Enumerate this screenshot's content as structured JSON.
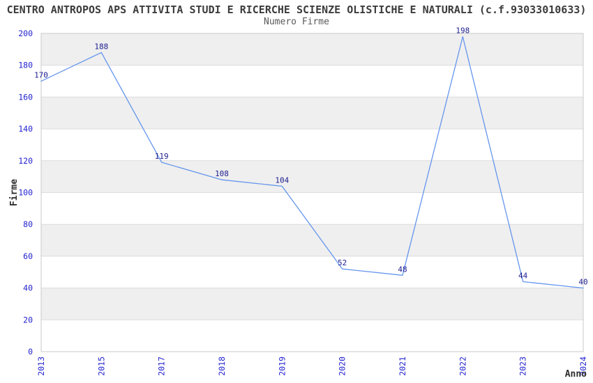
{
  "chart_data": {
    "type": "line",
    "title": "CENTRO ANTROPOS APS ATTIVITA STUDI E RICERCHE SCIENZE OLISTICHE E NATURALI (c.f.93033010633)",
    "subtitle": "Numero Firme",
    "xlabel": "Anno",
    "ylabel": "Firme",
    "categories": [
      "2013",
      "2015",
      "2017",
      "2018",
      "2019",
      "2020",
      "2021",
      "2022",
      "2023",
      "2024"
    ],
    "values": [
      170,
      188,
      119,
      108,
      104,
      52,
      48,
      198,
      44,
      40
    ],
    "ylim": [
      0,
      200
    ],
    "ytick_step": 20,
    "yticks": [
      0,
      20,
      40,
      60,
      80,
      100,
      120,
      140,
      160,
      180,
      200
    ],
    "grid": "horizontal-bands-alternating",
    "legend_position": "none",
    "x_tick_rotation_deg": 90,
    "colors": {
      "line": "#6495ED",
      "tick_label": "#2323cf",
      "data_label": "#1b1b8e",
      "band_fill": "#efefef",
      "gridline": "#dcdcdc",
      "plot_border": "#c9c9c9",
      "title": "#3c3c3c",
      "subtitle": "#595959",
      "axis_label": "#2e2e2e",
      "background": "#ffffff"
    }
  }
}
